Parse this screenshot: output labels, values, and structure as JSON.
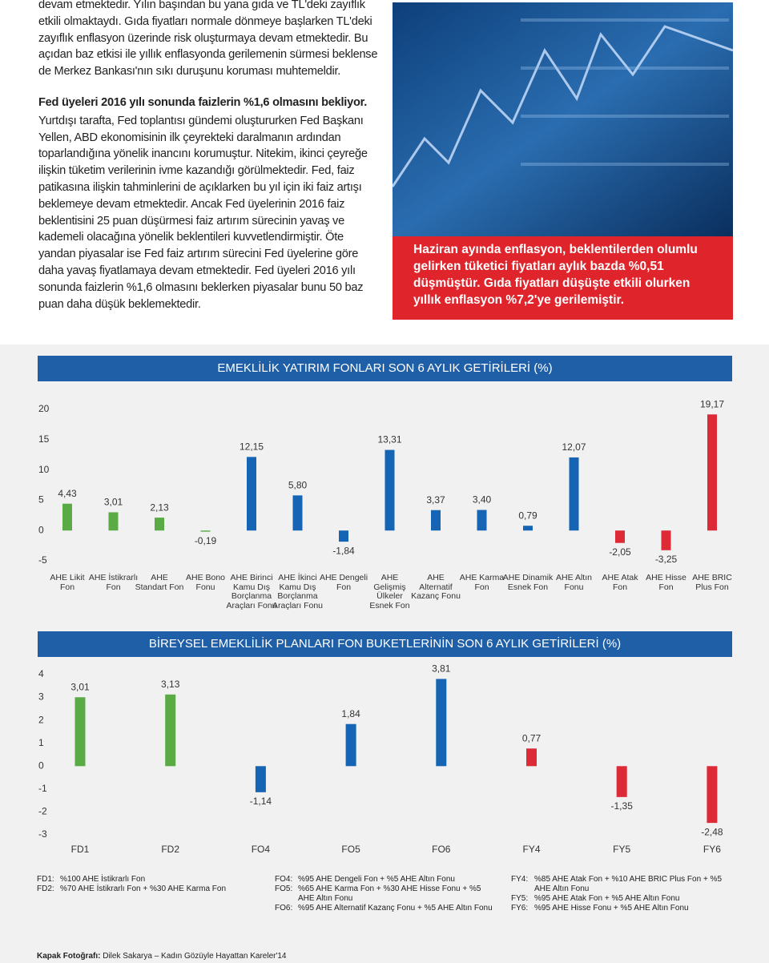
{
  "article": {
    "paragraphs": [
      "devam etmektedir. Yılın başından bu yana gıda ve TL'deki zayıflık etkili olmaktaydı. Gıda fiyatları normale dönmeye başlarken TL'deki zayıflık enflasyon üzerinde risk oluşturmaya devam etmektedir. Bu açıdan baz etkisi ile yıllık enflasyonda gerilemenin sürmesi beklense de Merkez Bankası'nın sıkı duruşunu koruması muhtemeldir.",
      "Yurtdışı tarafta, Fed toplantısı gündemi oluştururken Fed Başkanı Yellen, ABD ekonomisinin ilk çeyrekteki daralmanın ardından toparlandığına yönelik inancını korumuştur. Nitekim, ikinci çeyreğe ilişkin tüketim verilerinin ivme kazandığı görülmektedir. Fed, faiz patikasına ilişkin tahminlerini de açıklarken bu yıl için iki faiz artışı beklemeye devam etmektedir. Ancak Fed üyelerinin 2016 faiz beklentisini 25 puan düşürmesi faiz artırım sürecinin yavaş ve kademeli olacağına yönelik beklentileri kuvvetlendirmiştir. Öte yandan piyasalar ise Fed faiz artırım sürecini Fed üyelerine göre daha yavaş fiyatlamaya devam etmektedir. Fed üyeleri 2016 yılı sonunda faizlerin %1,6 olmasını beklerken piyasalar bunu 50 baz puan daha düşük beklemektedir."
    ],
    "heading": "Fed üyeleri 2016 yılı sonunda faizlerin %1,6 olmasını bekliyor."
  },
  "pull_quote": "Haziran ayında enflasyon, beklentilerden olumlu gelirken tüketici fiyatları aylık bazda %0,51 düşmüştür. Gıda fiyatları düşüşte etkili olurken yıllık enflasyon %7,2'ye gerilemiştir.",
  "chart_data": [
    {
      "type": "bar",
      "title": "EMEKLİLİK YATIRIM FONLARI SON 6 AYLIK GETİRİLERİ (%)",
      "categories": [
        "AHE Likit Fon",
        "AHE İstikrarlı Fon",
        "AHE Standart Fon",
        "AHE Bono Fonu",
        "AHE Birinci Kamu Dış Borçlanma Araçları Fonu",
        "AHE İkinci Kamu Dış Borçlanma Araçları Fonu",
        "AHE Dengeli Fon",
        "AHE Gelişmiş Ülkeler Esnek Fon",
        "AHE Alternatif Kazanç Fonu",
        "AHE Karma Fon",
        "AHE Dinamik Esnek Fon",
        "AHE Altın Fonu",
        "AHE Atak Fon",
        "AHE Hisse Fon",
        "AHE BRIC Plus Fon"
      ],
      "values": [
        4.43,
        3.01,
        2.13,
        -0.19,
        12.15,
        5.8,
        -1.84,
        13.31,
        3.37,
        3.4,
        0.79,
        12.07,
        -2.05,
        -3.25,
        19.17
      ],
      "value_labels": [
        "4,43",
        "3,01",
        "2,13",
        "-0,19",
        "12,15",
        "5,80",
        "-1,84",
        "13,31",
        "3,37",
        "3,40",
        "0,79",
        "12,07",
        "-2,05",
        "-3,25",
        "19,17"
      ],
      "colors": [
        "#5aaa46",
        "#5aaa46",
        "#5aaa46",
        "#5aaa46",
        "#1565b4",
        "#1565b4",
        "#1565b4",
        "#1565b4",
        "#1565b4",
        "#1565b4",
        "#1565b4",
        "#1565b4",
        "#dc2a36",
        "#dc2a36",
        "#dc2a36"
      ],
      "ylim": [
        -5,
        20
      ],
      "yticks": [
        -5,
        0,
        5,
        10,
        15,
        20
      ]
    },
    {
      "type": "bar",
      "title": "BİREYSEL EMEKLİLİK PLANLARI FON BUKETLERİNİN SON 6 AYLIK GETİRİLERİ (%)",
      "categories": [
        "FD1",
        "FD2",
        "FO4",
        "FO5",
        "FO6",
        "FY4",
        "FY5",
        "FY6"
      ],
      "values": [
        3.01,
        3.13,
        -1.14,
        1.84,
        3.81,
        0.77,
        -1.35,
        -2.48
      ],
      "value_labels": [
        "3,01",
        "3,13",
        "-1,14",
        "1,84",
        "3,81",
        "0,77",
        "-1,35",
        "-2,48"
      ],
      "colors": [
        "#5aaa46",
        "#5aaa46",
        "#1565b4",
        "#1565b4",
        "#1565b4",
        "#dc2a36",
        "#dc2a36",
        "#dc2a36"
      ],
      "ylim": [
        -3,
        4
      ],
      "yticks": [
        -3,
        -2,
        -1,
        0,
        1,
        2,
        3,
        4
      ]
    }
  ],
  "footnotes": [
    [
      {
        "code": "FD1:",
        "text": "%100 AHE İstikrarlı Fon"
      },
      {
        "code": "FD2:",
        "text": "%70 AHE İstikrarlı Fon + %30 AHE Karma Fon"
      }
    ],
    [
      {
        "code": "FO4:",
        "text": "%95 AHE Dengeli Fon + %5 AHE Altın Fonu"
      },
      {
        "code": "FO5:",
        "text": "%65 AHE Karma Fon + %30 AHE Hisse Fonu + %5 AHE Altın Fonu"
      },
      {
        "code": "FO6:",
        "text": "%95 AHE Alternatif Kazanç Fonu + %5 AHE Altın Fonu"
      }
    ],
    [
      {
        "code": "FY4:",
        "text": "%85 AHE Atak Fon + %10 AHE BRIC Plus Fon + %5 AHE Altın Fonu"
      },
      {
        "code": "FY5:",
        "text": "%95 AHE Atak Fon + %5 AHE Altın Fonu"
      },
      {
        "code": "FY6:",
        "text": "%95 AHE Hisse Fonu + %5 AHE Altın Fonu"
      }
    ]
  ],
  "credit": {
    "label": "Kapak Fotoğrafı:",
    "text": "Dilek Sakarya – Kadın Gözüyle Hayattan Kareler'14"
  }
}
